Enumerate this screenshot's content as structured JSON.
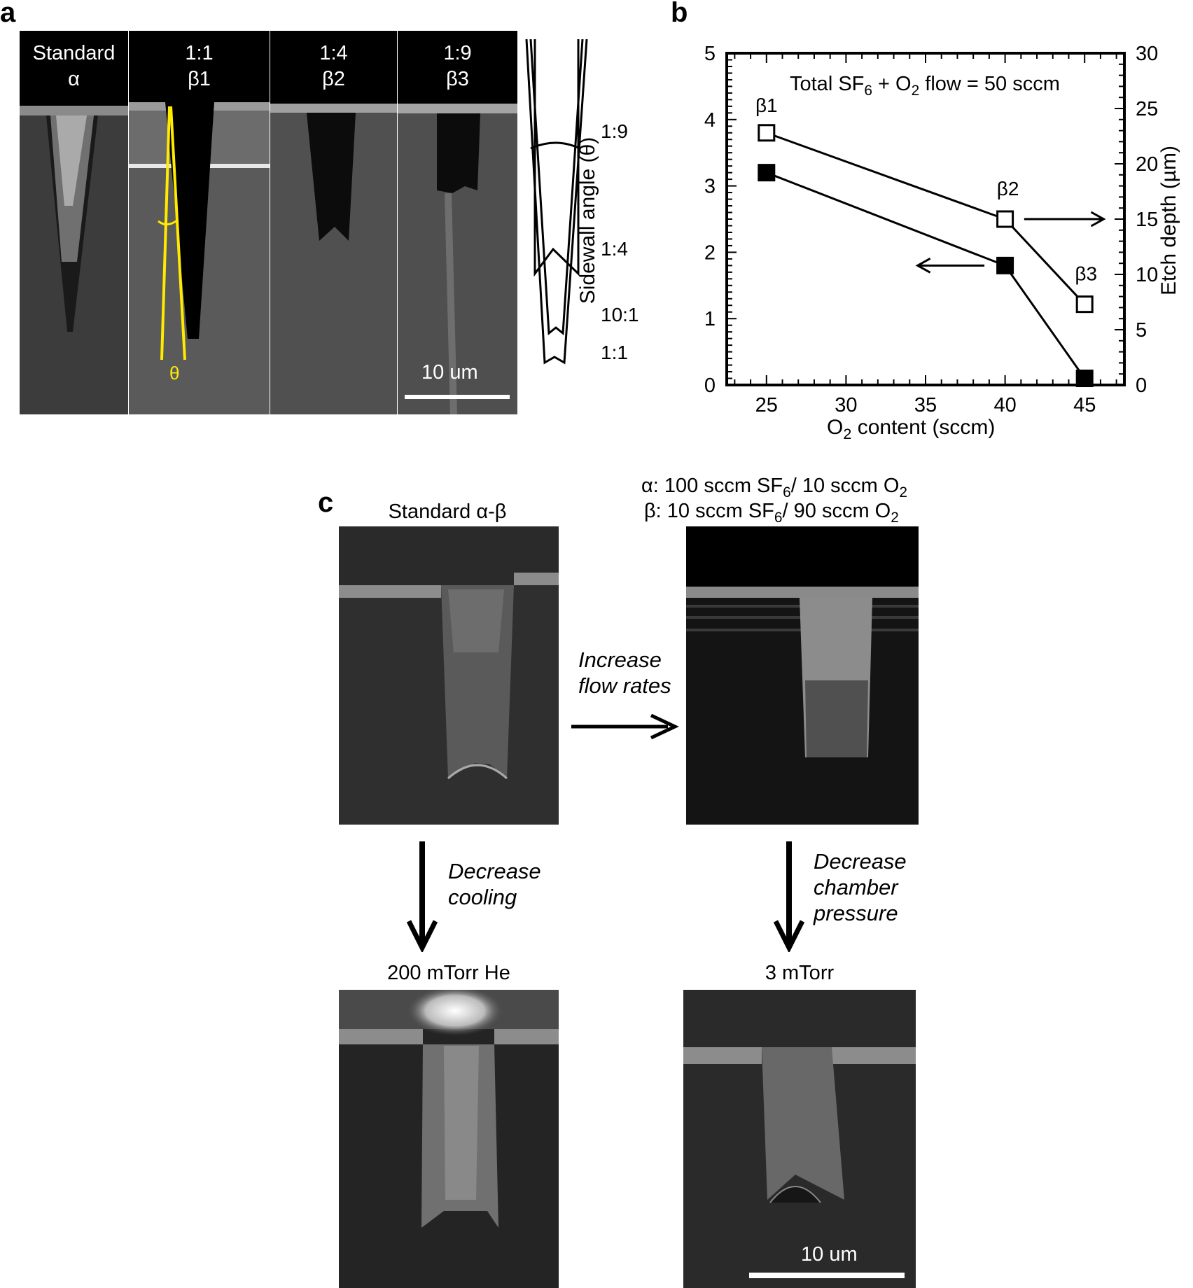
{
  "panel_a": {
    "label": "a",
    "images": [
      {
        "line1": "Standard",
        "line2": "α"
      },
      {
        "line1": "1:1",
        "line2": "β1"
      },
      {
        "line1": "1:4",
        "line2": "β2"
      },
      {
        "line1": "1:9",
        "line2": "β3"
      }
    ],
    "theta_label": "θ",
    "scale_bar": "10 um",
    "profile_labels": [
      "1:9",
      "1:4",
      "10:1",
      "1:1"
    ]
  },
  "panel_b": {
    "label": "b",
    "chart_data": {
      "type": "line",
      "annotation_prefix": "Total SF",
      "annotation_sub1": "6",
      "annotation_mid": " + O",
      "annotation_sub2": "2",
      "annotation_suffix": " flow = 50 sccm",
      "xlabel_prefix": "O",
      "xlabel_sub": "2",
      "xlabel_suffix": " content (sccm)",
      "ylabel_left": "Sidewall angle (θ)",
      "ylabel_right": "Etch depth (µm)",
      "xlim": [
        22.5,
        47.5
      ],
      "ylim_left": [
        0,
        5
      ],
      "ylim_right": [
        0,
        30
      ],
      "x_ticks": [
        "25",
        "30",
        "35",
        "40",
        "45"
      ],
      "y_left_ticks": [
        "0",
        "1",
        "2",
        "3",
        "4",
        "5"
      ],
      "y_right_ticks": [
        "0",
        "5",
        "10",
        "15",
        "20",
        "25",
        "30"
      ],
      "grid": false,
      "series": [
        {
          "axis": "left",
          "marker": "filled-square",
          "x": [
            25,
            40,
            45
          ],
          "values": [
            3.2,
            1.8,
            0.1
          ]
        },
        {
          "axis": "right",
          "marker": "open-square",
          "x": [
            25,
            40,
            45
          ],
          "values": [
            22.8,
            15,
            7.3
          ]
        }
      ],
      "point_labels": [
        "β1",
        "β2",
        "β3"
      ]
    }
  },
  "panel_c": {
    "label": "c",
    "img1_caption": "Standard α-β",
    "recipe_alpha_prefix": "α:  100 sccm  SF",
    "recipe_alpha_sub1": "6",
    "recipe_alpha_mid": "/ 10 sccm  O",
    "recipe_alpha_sub2": "2",
    "recipe_beta_prefix": "β:  10 sccm  SF",
    "recipe_beta_sub1": "6",
    "recipe_beta_mid": "/ 90 sccm  O",
    "recipe_beta_sub2": "2",
    "arrow_right_line1": "Increase",
    "arrow_right_line2": "flow rates",
    "arrow_down1_line1": "Decrease",
    "arrow_down1_line2": "cooling",
    "arrow_down2_line1": "Decrease",
    "arrow_down2_line2": "chamber",
    "arrow_down2_line3": "pressure",
    "img3_caption": "200 mTorr He",
    "img4_caption": "3 mTorr",
    "scale_bar": "10 um"
  }
}
